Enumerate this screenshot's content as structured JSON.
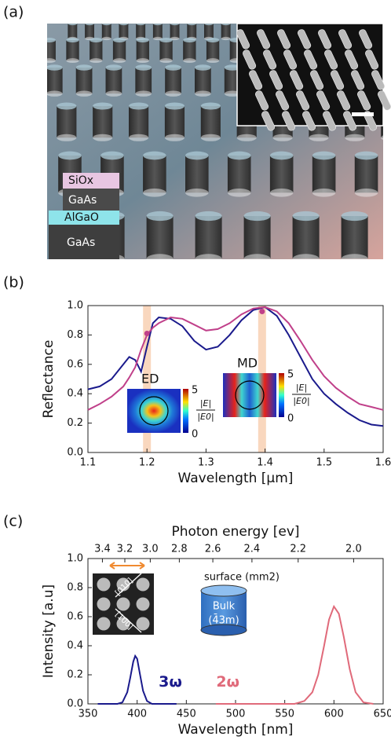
{
  "panel_labels": [
    "(a)",
    "(b)",
    "(c)"
  ],
  "figure_a": {
    "layers": [
      "SiOx",
      "GaAs",
      "AlGaO",
      "GaAs"
    ]
  },
  "chart_data": [
    {
      "type": "line",
      "xlabel": "Wavelength [µm]",
      "ylabel": "Reflectance",
      "xlim": [
        1.1,
        1.6
      ],
      "ylim": [
        0,
        1
      ],
      "xticks": [
        1.1,
        1.2,
        1.3,
        1.4,
        1.5,
        1.6
      ],
      "yticks": [
        {
          "value": 0,
          "label": "0.0"
        },
        0.2,
        0.4,
        0.6,
        0.8,
        {
          "value": 1,
          "label": "1.0"
        }
      ],
      "x": [
        1.1,
        1.12,
        1.14,
        1.16,
        1.17,
        1.18,
        1.19,
        1.2,
        1.21,
        1.22,
        1.24,
        1.26,
        1.28,
        1.3,
        1.32,
        1.34,
        1.36,
        1.38,
        1.4,
        1.42,
        1.44,
        1.46,
        1.48,
        1.5,
        1.52,
        1.54,
        1.56,
        1.58,
        1.6
      ],
      "series": [
        {
          "color": "#1a1a8c",
          "values": [
            0.43,
            0.45,
            0.5,
            0.6,
            0.65,
            0.63,
            0.55,
            0.72,
            0.88,
            0.92,
            0.91,
            0.86,
            0.76,
            0.7,
            0.72,
            0.8,
            0.9,
            0.97,
            0.99,
            0.93,
            0.8,
            0.65,
            0.5,
            0.4,
            0.33,
            0.27,
            0.22,
            0.19,
            0.18
          ]
        },
        {
          "color": "#c0408a",
          "values": [
            0.29,
            0.33,
            0.38,
            0.45,
            0.51,
            0.58,
            0.7,
            0.8,
            0.85,
            0.88,
            0.92,
            0.91,
            0.87,
            0.83,
            0.84,
            0.88,
            0.94,
            0.98,
            0.99,
            0.96,
            0.88,
            0.76,
            0.63,
            0.52,
            0.44,
            0.38,
            0.33,
            0.31,
            0.29
          ]
        }
      ],
      "bands": [
        1.2,
        1.395
      ],
      "markers": {
        "color": "#c0408a",
        "x": [
          1.2,
          1.395
        ],
        "values": [
          0.81,
          0.96
        ]
      },
      "insets": [
        {
          "label": "ED",
          "colorbar_ticks": [
            5,
            0
          ],
          "colorbar_label": {
            "numerator": "|E|",
            "denominator": "|E0|"
          }
        },
        {
          "label": "MD",
          "colorbar_ticks": [
            5,
            0
          ],
          "colorbar_label": {
            "numerator": "|E|",
            "denominator": "|E0|"
          }
        }
      ]
    },
    {
      "type": "line",
      "xlabel": "Wavelength [nm]",
      "ylabel": "Intensity [a.u]",
      "x2label": "Photon energy [ev]",
      "xlim": [
        350,
        650
      ],
      "ylim": [
        0,
        1
      ],
      "xticks": [
        350,
        400,
        450,
        500,
        550,
        600,
        650
      ],
      "yticks": [
        {
          "value": 0,
          "label": "0.0"
        },
        0.2,
        0.4,
        0.6,
        0.8,
        {
          "value": 1,
          "label": "1.0"
        }
      ],
      "x2ticks": [
        3.4,
        3.2,
        {
          "value": 3,
          "label": "3.0"
        },
        2.8,
        2.6,
        2.4,
        2.2,
        {
          "value": 2,
          "label": "2.0"
        }
      ],
      "series": [
        {
          "name": "3ω",
          "color": "#1a1a8c",
          "x": [
            360,
            380,
            385,
            390,
            393,
            396,
            398,
            400,
            403,
            406,
            410,
            415,
            420,
            440
          ],
          "values": [
            0,
            0,
            0.01,
            0.08,
            0.18,
            0.29,
            0.33,
            0.31,
            0.2,
            0.09,
            0.02,
            0,
            0,
            0
          ]
        },
        {
          "name": "2ω",
          "color": "#e06a7a",
          "x": [
            480,
            560,
            570,
            578,
            584,
            590,
            595,
            600,
            605,
            610,
            616,
            622,
            630,
            640
          ],
          "values": [
            0,
            0,
            0.02,
            0.08,
            0.2,
            0.4,
            0.58,
            0.67,
            0.62,
            0.46,
            0.24,
            0.08,
            0.01,
            0
          ]
        }
      ],
      "annotations": [
        "surface (mm2)",
        "Bulk",
        "(4̄3m)",
        "[010]",
        "[100]"
      ]
    }
  ]
}
